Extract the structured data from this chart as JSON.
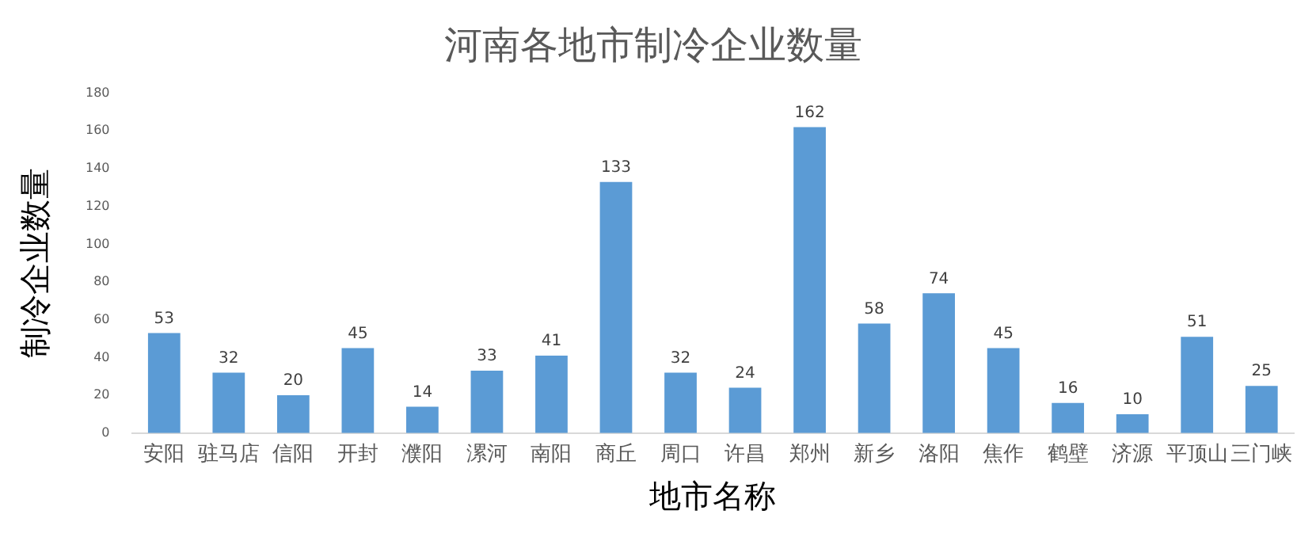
{
  "chart_data": {
    "type": "bar",
    "title": "河南各地市制冷企业数量",
    "xlabel": "地市名称",
    "ylabel": "制冷企业数量",
    "categories": [
      "安阳",
      "驻马店",
      "信阳",
      "开封",
      "濮阳",
      "漯河",
      "南阳",
      "商丘",
      "周口",
      "许昌",
      "郑州",
      "新乡",
      "洛阳",
      "焦作",
      "鹤壁",
      "济源",
      "平顶山",
      "三门峡"
    ],
    "values": [
      53,
      32,
      20,
      45,
      14,
      33,
      41,
      133,
      32,
      24,
      162,
      58,
      74,
      45,
      16,
      10,
      51,
      25
    ],
    "color": "#5b9bd5",
    "ylim": [
      0,
      180
    ],
    "yticks": [
      0,
      20,
      40,
      60,
      80,
      100,
      120,
      140,
      160,
      180
    ],
    "grid": false,
    "data_labels": true
  }
}
